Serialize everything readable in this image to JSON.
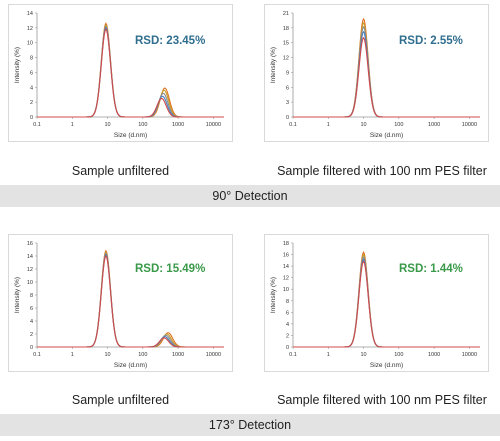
{
  "colors": {
    "rsd_high": "#2f6e8e",
    "rsd_low": "#3a9a4a",
    "series": [
      "#e07020",
      "#c8a02a",
      "#8a8a8a",
      "#4c7fbf",
      "#d04b4b",
      "#f0b040",
      "#6aa36a",
      "#9b6bb5"
    ]
  },
  "sections": [
    {
      "band_label": "90° Detection",
      "panels": [
        {
          "caption": "Sample unfiltered",
          "rsd": "RSD: 23.45%",
          "rsd_color": "high"
        },
        {
          "caption": "Sample filtered with 100 nm PES filter",
          "rsd": "RSD: 2.55%",
          "rsd_color": "high"
        }
      ]
    },
    {
      "band_label": "173° Detection",
      "panels": [
        {
          "caption": "Sample unfiltered",
          "rsd": "RSD: 15.49%",
          "rsd_color": "low"
        },
        {
          "caption": "Sample filtered with 100 nm PES filter",
          "rsd": "RSD: 1.44%",
          "rsd_color": "low"
        }
      ]
    }
  ],
  "chart_data": [
    {
      "type": "line",
      "xscale": "log",
      "xlim": [
        0.1,
        20000
      ],
      "ylim": [
        0,
        14
      ],
      "yticks": [
        0,
        2,
        4,
        6,
        8,
        10,
        12,
        14
      ],
      "xtick_labels": [
        "0.1",
        "1",
        "10",
        "100",
        "1000",
        "10000"
      ],
      "xlabel": "Size (d.nm)",
      "ylabel": "Intensity (%)",
      "series": [
        {
          "peaks": [
            {
              "center": 9,
              "height": 12.6
            },
            {
              "center": 420,
              "height": 3.9
            }
          ]
        },
        {
          "peaks": [
            {
              "center": 9,
              "height": 12.4
            },
            {
              "center": 400,
              "height": 3.6
            }
          ]
        },
        {
          "peaks": [
            {
              "center": 9,
              "height": 12.2
            },
            {
              "center": 380,
              "height": 3.2
            }
          ]
        },
        {
          "peaks": [
            {
              "center": 9,
              "height": 12.0
            },
            {
              "center": 360,
              "height": 2.8
            }
          ]
        },
        {
          "peaks": [
            {
              "center": 9,
              "height": 11.8
            },
            {
              "center": 340,
              "height": 2.5
            }
          ]
        }
      ]
    },
    {
      "type": "line",
      "xscale": "log",
      "xlim": [
        0.1,
        20000
      ],
      "ylim": [
        0,
        21
      ],
      "yticks": [
        0,
        3,
        6,
        9,
        12,
        15,
        18,
        21
      ],
      "xtick_labels": [
        "0.1",
        "1",
        "10",
        "100",
        "1000",
        "10000"
      ],
      "xlabel": "Size (d.nm)",
      "ylabel": "Intensity (%)",
      "series": [
        {
          "peaks": [
            {
              "center": 10,
              "height": 19.8
            }
          ]
        },
        {
          "peaks": [
            {
              "center": 10,
              "height": 19.0
            }
          ]
        },
        {
          "peaks": [
            {
              "center": 10,
              "height": 18.2
            }
          ]
        },
        {
          "peaks": [
            {
              "center": 10,
              "height": 17.2
            }
          ]
        },
        {
          "peaks": [
            {
              "center": 10,
              "height": 16.0
            }
          ]
        }
      ]
    },
    {
      "type": "line",
      "xscale": "log",
      "xlim": [
        0.1,
        20000
      ],
      "ylim": [
        0,
        16
      ],
      "yticks": [
        0,
        2,
        4,
        6,
        8,
        10,
        12,
        14,
        16
      ],
      "xtick_labels": [
        "0.1",
        "1",
        "10",
        "100",
        "1000",
        "10000"
      ],
      "xlabel": "Size (d.nm)",
      "ylabel": "Intensity (%)",
      "series": [
        {
          "peaks": [
            {
              "center": 9,
              "height": 14.8
            },
            {
              "center": 520,
              "height": 2.2
            }
          ]
        },
        {
          "peaks": [
            {
              "center": 9,
              "height": 14.6
            },
            {
              "center": 480,
              "height": 2.0
            }
          ]
        },
        {
          "peaks": [
            {
              "center": 9,
              "height": 14.4
            },
            {
              "center": 450,
              "height": 1.8
            }
          ]
        },
        {
          "peaks": [
            {
              "center": 9,
              "height": 14.2
            },
            {
              "center": 420,
              "height": 1.6
            }
          ]
        },
        {
          "peaks": [
            {
              "center": 9,
              "height": 14.0
            },
            {
              "center": 400,
              "height": 1.4
            }
          ]
        }
      ]
    },
    {
      "type": "line",
      "xscale": "log",
      "xlim": [
        0.1,
        20000
      ],
      "ylim": [
        0,
        18
      ],
      "yticks": [
        0,
        2,
        4,
        6,
        8,
        10,
        12,
        14,
        16,
        18
      ],
      "xtick_labels": [
        "0.1",
        "1",
        "10",
        "100",
        "1000",
        "10000"
      ],
      "xlabel": "Size (d.nm)",
      "ylabel": "Intensity (%)",
      "series": [
        {
          "peaks": [
            {
              "center": 10,
              "height": 16.4
            }
          ]
        },
        {
          "peaks": [
            {
              "center": 10,
              "height": 16.0
            }
          ]
        },
        {
          "peaks": [
            {
              "center": 10,
              "height": 15.6
            }
          ]
        },
        {
          "peaks": [
            {
              "center": 10,
              "height": 15.2
            }
          ]
        },
        {
          "peaks": [
            {
              "center": 10,
              "height": 14.8
            }
          ]
        }
      ]
    }
  ]
}
